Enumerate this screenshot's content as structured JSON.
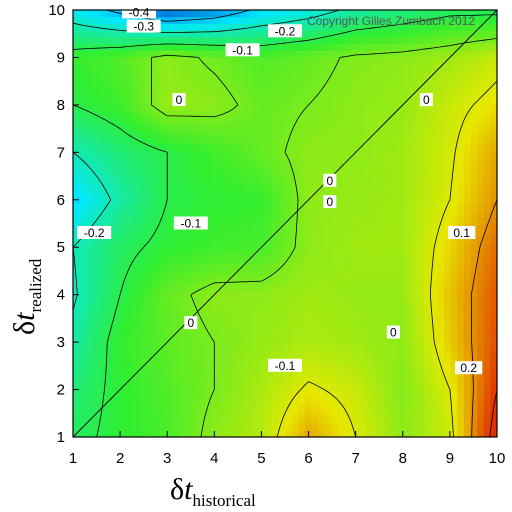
{
  "chart_data": {
    "type": "heatmap",
    "annotation": "Copyright Gilles Zumbach 2012",
    "x_axis": {
      "symbol": "δ",
      "variable": "t",
      "subscript": "historical"
    },
    "y_axis": {
      "symbol": "δ",
      "variable": "t",
      "subscript": "realized"
    },
    "xlim": [
      1,
      10
    ],
    "ylim": [
      1,
      10
    ],
    "x_ticks": [
      "1",
      "2",
      "3",
      "4",
      "5",
      "6",
      "7",
      "8",
      "9",
      "10"
    ],
    "y_ticks": [
      "1",
      "2",
      "3",
      "4",
      "5",
      "6",
      "7",
      "8",
      "9",
      "10"
    ],
    "colormap": [
      "#0030c8",
      "#00e8ff",
      "#30ee30",
      "#e8e800",
      "#e03000"
    ],
    "color_range": [
      -0.45,
      0.3
    ],
    "grid_x": [
      1,
      2,
      3,
      4,
      5,
      6,
      7,
      8,
      9,
      10
    ],
    "grid_y": [
      1,
      2,
      3,
      4,
      5,
      6,
      7,
      8,
      9,
      10
    ],
    "z": [
      [
        -0.12,
        -0.08,
        -0.05,
        0.02,
        0.06,
        0.18,
        0.1,
        0.02,
        0.08,
        0.34
      ],
      [
        -0.14,
        -0.08,
        -0.04,
        0.0,
        0.05,
        0.11,
        0.08,
        0.01,
        0.1,
        0.3
      ],
      [
        -0.18,
        -0.07,
        -0.03,
        0.0,
        0.03,
        0.05,
        0.04,
        0.02,
        0.14,
        0.27
      ],
      [
        -0.21,
        -0.1,
        -0.02,
        0.02,
        0.02,
        0.04,
        0.03,
        0.03,
        0.15,
        0.26
      ],
      [
        -0.2,
        -0.12,
        -0.08,
        -0.06,
        -0.05,
        0.02,
        0.04,
        0.04,
        0.13,
        0.24
      ],
      [
        -0.28,
        -0.18,
        -0.1,
        -0.08,
        -0.07,
        0.02,
        0.03,
        0.04,
        0.1,
        0.2
      ],
      [
        -0.2,
        -0.14,
        -0.1,
        -0.06,
        -0.02,
        0.02,
        0.02,
        0.04,
        0.09,
        0.18
      ],
      [
        -0.1,
        -0.06,
        0.03,
        0.02,
        -0.02,
        0.0,
        0.02,
        0.03,
        0.08,
        0.12
      ],
      [
        -0.07,
        -0.04,
        0.02,
        -0.01,
        -0.04,
        -0.02,
        0.01,
        0.02,
        0.04,
        0.08
      ],
      [
        -0.25,
        -0.32,
        -0.4,
        -0.36,
        -0.28,
        -0.24,
        -0.18,
        -0.15,
        -0.12,
        -0.12
      ]
    ],
    "contour_labels": [
      {
        "text": "-0.4",
        "x": 2.4,
        "y": 9.95
      },
      {
        "text": "-0.3",
        "x": 2.5,
        "y": 9.65
      },
      {
        "text": "-0.2",
        "x": 5.5,
        "y": 9.55
      },
      {
        "text": "-0.1",
        "x": 4.6,
        "y": 9.15
      },
      {
        "text": "0",
        "x": 3.25,
        "y": 8.1
      },
      {
        "text": "0",
        "x": 8.5,
        "y": 8.1
      },
      {
        "text": "0",
        "x": 6.45,
        "y": 6.4
      },
      {
        "text": "0",
        "x": 6.45,
        "y": 5.95
      },
      {
        "text": "-0.2",
        "x": 1.45,
        "y": 5.3
      },
      {
        "text": "-0.1",
        "x": 3.5,
        "y": 5.5
      },
      {
        "text": "0.1",
        "x": 9.25,
        "y": 5.3
      },
      {
        "text": "0",
        "x": 3.5,
        "y": 3.4
      },
      {
        "text": "0",
        "x": 7.8,
        "y": 3.2
      },
      {
        "text": "-0.1",
        "x": 5.5,
        "y": 2.5
      },
      {
        "text": "0.2",
        "x": 9.4,
        "y": 2.45
      }
    ]
  }
}
